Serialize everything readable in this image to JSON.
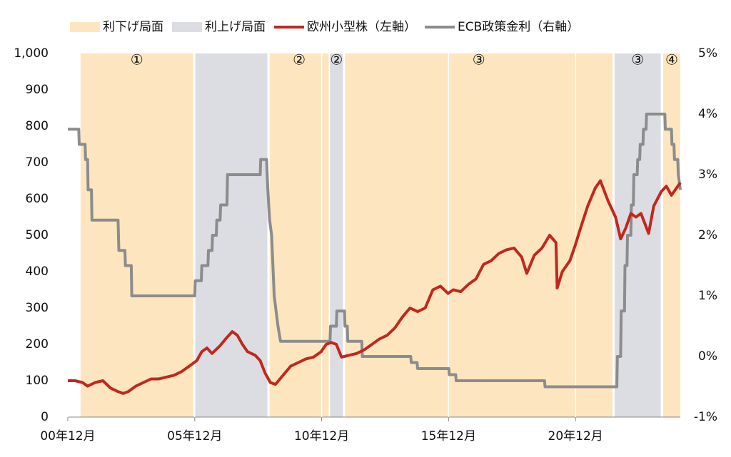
{
  "chart_data": {
    "type": "line",
    "phases": [
      {
        "name": "利下げ局面",
        "color": "#fde6bf",
        "label_color": "#f07d1a"
      },
      {
        "name": "利上げ局面",
        "color": "#dcdde3",
        "label_color": "#9a9a9a"
      }
    ],
    "bands": [
      {
        "start": 2001.42,
        "end": 2005.86,
        "phase": 0,
        "label": "①"
      },
      {
        "start": 2005.94,
        "end": 2008.78,
        "phase": 1
      },
      {
        "start": 2008.87,
        "end": 2011.2,
        "phase": 0,
        "label": "②"
      },
      {
        "start": 2011.25,
        "end": 2011.76,
        "phase": 1,
        "label": "②"
      },
      {
        "start": 2011.84,
        "end": 2022.38,
        "phase": 0,
        "label": "③"
      },
      {
        "start": 2022.46,
        "end": 2024.28,
        "phase": 1,
        "label": "③"
      },
      {
        "start": 2024.37,
        "end": 2025.05,
        "phase": 0,
        "label": "④"
      }
    ],
    "series": [
      {
        "name": "欧州小型株（左軸）",
        "color": "#c0281f",
        "x": [
          2000.92,
          2001.2,
          2001.5,
          2001.7,
          2002.0,
          2002.3,
          2002.6,
          2002.9,
          2003.1,
          2003.3,
          2003.6,
          2003.9,
          2004.2,
          2004.5,
          2004.8,
          2005.1,
          2005.4,
          2005.7,
          2006.0,
          2006.2,
          2006.4,
          2006.6,
          2006.9,
          2007.2,
          2007.4,
          2007.6,
          2007.8,
          2008.0,
          2008.3,
          2008.5,
          2008.7,
          2008.9,
          2009.1,
          2009.4,
          2009.7,
          2010.0,
          2010.3,
          2010.6,
          2010.9,
          2011.1,
          2011.3,
          2011.5,
          2011.7,
          2012.0,
          2012.3,
          2012.6,
          2012.9,
          2013.2,
          2013.5,
          2013.8,
          2014.1,
          2014.4,
          2014.7,
          2015.0,
          2015.3,
          2015.6,
          2015.9,
          2016.1,
          2016.4,
          2016.7,
          2017.0,
          2017.3,
          2017.6,
          2017.9,
          2018.2,
          2018.5,
          2018.8,
          2019.0,
          2019.3,
          2019.6,
          2019.9,
          2020.15,
          2020.2,
          2020.4,
          2020.7,
          2020.9,
          2021.1,
          2021.4,
          2021.7,
          2021.9,
          2022.2,
          2022.5,
          2022.7,
          2022.9,
          2023.1,
          2023.3,
          2023.5,
          2023.8,
          2024.0,
          2024.3,
          2024.5,
          2024.7,
          2024.9,
          2025.05
        ],
        "values": [
          100,
          100,
          95,
          85,
          95,
          100,
          80,
          70,
          65,
          70,
          85,
          95,
          105,
          105,
          110,
          115,
          125,
          140,
          155,
          180,
          190,
          175,
          195,
          220,
          235,
          225,
          200,
          180,
          170,
          155,
          120,
          95,
          90,
          115,
          140,
          150,
          160,
          165,
          180,
          200,
          205,
          200,
          165,
          170,
          175,
          185,
          200,
          215,
          225,
          245,
          275,
          300,
          290,
          300,
          350,
          360,
          340,
          350,
          345,
          365,
          380,
          420,
          430,
          450,
          460,
          465,
          440,
          395,
          445,
          465,
          500,
          480,
          355,
          400,
          430,
          470,
          515,
          580,
          630,
          650,
          595,
          550,
          490,
          520,
          560,
          550,
          560,
          505,
          580,
          620,
          635,
          610,
          630,
          645
        ]
      },
      {
        "name": "ECB政策金利（右軸）",
        "color": "#8c8c8c",
        "axis": "y2",
        "x": [
          2000.92,
          2001.35,
          2001.37,
          2001.6,
          2001.62,
          2001.7,
          2001.72,
          2001.85,
          2001.87,
          2002.9,
          2002.93,
          2003.17,
          2003.19,
          2003.42,
          2003.44,
          2005.92,
          2005.94,
          2006.18,
          2006.2,
          2006.44,
          2006.46,
          2006.6,
          2006.62,
          2006.77,
          2006.79,
          2006.92,
          2006.94,
          2007.19,
          2007.21,
          2008.5,
          2008.52,
          2008.75,
          2008.8,
          2008.87,
          2008.95,
          2009.05,
          2009.2,
          2009.3,
          2011.25,
          2011.27,
          2011.5,
          2011.52,
          2011.82,
          2011.84,
          2011.93,
          2011.95,
          2012.5,
          2012.52,
          2014.43,
          2014.45,
          2014.68,
          2014.7,
          2015.93,
          2015.95,
          2016.2,
          2016.22,
          2019.7,
          2019.72,
          2022.55,
          2022.57,
          2022.7,
          2022.72,
          2022.85,
          2022.87,
          2022.95,
          2022.97,
          2023.1,
          2023.12,
          2023.2,
          2023.22,
          2023.35,
          2023.37,
          2023.45,
          2023.47,
          2023.58,
          2023.6,
          2023.7,
          2023.72,
          2024.44,
          2024.46,
          2024.7,
          2024.72,
          2024.8,
          2024.82,
          2024.95,
          2024.97,
          2025.05
        ],
        "values": [
          3.75,
          3.75,
          3.5,
          3.5,
          3.25,
          3.25,
          2.75,
          2.75,
          2.25,
          2.25,
          1.75,
          1.75,
          1.5,
          1.5,
          1.0,
          1.0,
          1.25,
          1.25,
          1.5,
          1.5,
          1.75,
          1.75,
          2.0,
          2.0,
          2.25,
          2.25,
          2.5,
          2.5,
          3.0,
          3.0,
          3.25,
          3.25,
          2.75,
          2.25,
          2.0,
          1.0,
          0.5,
          0.25,
          0.25,
          0.5,
          0.5,
          0.75,
          0.75,
          0.5,
          0.5,
          0.25,
          0.25,
          0.0,
          0.0,
          -0.1,
          -0.1,
          -0.2,
          -0.2,
          -0.3,
          -0.3,
          -0.4,
          -0.4,
          -0.5,
          -0.5,
          0.0,
          0.0,
          0.75,
          0.75,
          1.5,
          1.5,
          2.0,
          2.0,
          2.5,
          2.5,
          3.0,
          3.0,
          3.25,
          3.25,
          3.5,
          3.5,
          3.75,
          3.75,
          4.0,
          4.0,
          3.75,
          3.75,
          3.5,
          3.5,
          3.25,
          3.25,
          3.0,
          2.75
        ]
      }
    ],
    "xlim": [
      2000.92,
      2025.05
    ],
    "xticks": [
      {
        "value": 2000.92,
        "label": "00年12月"
      },
      {
        "value": 2005.92,
        "label": "05年12月"
      },
      {
        "value": 2010.92,
        "label": "10年12月"
      },
      {
        "value": 2015.92,
        "label": "15年12月"
      },
      {
        "value": 2020.92,
        "label": "20年12月"
      }
    ],
    "ylim": [
      0,
      1000
    ],
    "yticks": [
      0,
      100,
      200,
      300,
      400,
      500,
      600,
      700,
      800,
      900,
      {
        "value": 1000,
        "label": "1,000"
      }
    ],
    "y2lim": [
      -1,
      5
    ],
    "y2ticks": [
      {
        "value": -1,
        "label": "-1%"
      },
      {
        "value": 0,
        "label": "0%"
      },
      {
        "value": 1,
        "label": "1%"
      },
      {
        "value": 2,
        "label": "2%"
      },
      {
        "value": 3,
        "label": "3%"
      },
      {
        "value": 4,
        "label": "4%"
      },
      {
        "value": 5,
        "label": "5%"
      }
    ]
  }
}
